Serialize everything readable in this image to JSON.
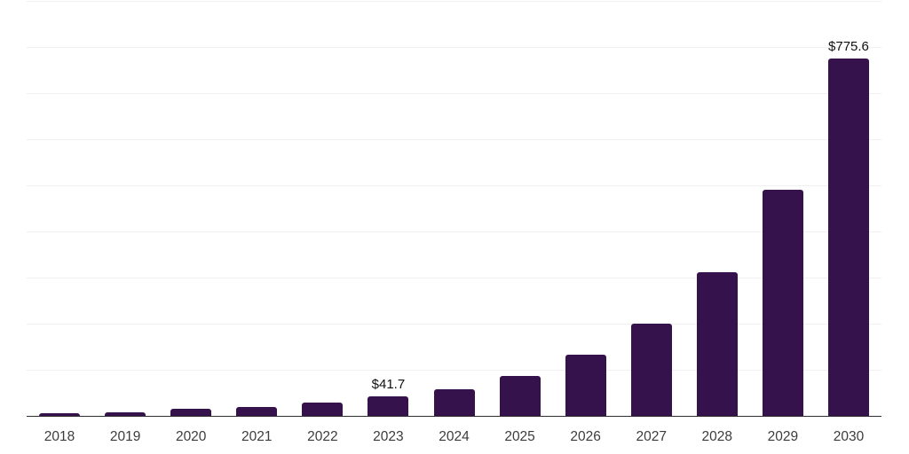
{
  "chart_data": {
    "type": "bar",
    "title": "",
    "xlabel": "",
    "ylabel": "",
    "categories": [
      "2018",
      "2019",
      "2020",
      "2021",
      "2022",
      "2023",
      "2024",
      "2025",
      "2026",
      "2027",
      "2028",
      "2029",
      "2030"
    ],
    "values": [
      5.1,
      8.5,
      15.4,
      20.1,
      29.5,
      41.7,
      57.7,
      86.5,
      132.7,
      200.0,
      312.0,
      490.9,
      775.6
    ],
    "data_labels": [
      "",
      "",
      "",
      "",
      "",
      "$41.7",
      "",
      "",
      "",
      "",
      "",
      "",
      "$775.6"
    ],
    "ylim": [
      0,
      900
    ],
    "gridline_step": 100,
    "grid": true,
    "y_axis_tick_labels_visible": false,
    "legend": false,
    "colors": {
      "bar": "#35124B",
      "gridline": "#F0F0F0",
      "axis_line": "#2E2E2E",
      "tick_label": "#3C3C3C",
      "data_label": "#101010",
      "background": "#FFFFFF"
    }
  }
}
